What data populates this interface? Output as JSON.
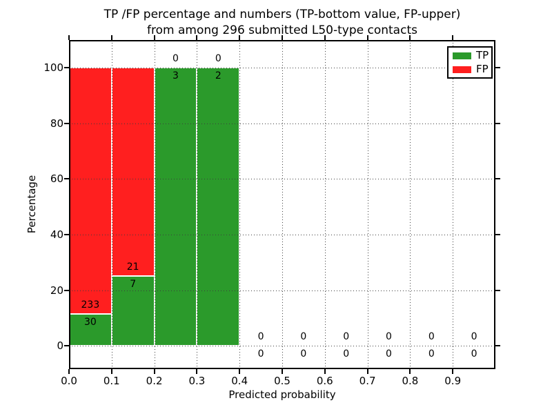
{
  "chart_data": {
    "type": "bar",
    "stacked": true,
    "title_line1": "TP /FP percentage and numbers (TP-bottom value, FP-upper)",
    "title_line2": "from among 296 submitted L50-type contacts",
    "xlabel": "Predicted probability",
    "ylabel": "Percentage",
    "xlim": [
      0.0,
      1.0
    ],
    "ylim": [
      -8.4,
      110
    ],
    "xtick_labels": [
      "0.0",
      "0.1",
      "0.2",
      "0.3",
      "0.4",
      "0.5",
      "0.6",
      "0.7",
      "0.8",
      "0.9"
    ],
    "yticks": [
      0,
      20,
      40,
      60,
      80,
      100
    ],
    "grid": "dotted",
    "legend_position": "upper right",
    "total_submitted": 296,
    "annotation_rule": "at each TP-segment top: FP count above, TP count below",
    "colors": {
      "tp": "#2b9a2b",
      "fp": "#ff1f1f"
    },
    "legend": [
      {
        "name": "TP",
        "color": "#2b9a2b"
      },
      {
        "name": "FP",
        "color": "#ff1f1f"
      }
    ],
    "bins": [
      {
        "x_start": 0.0,
        "x_end": 0.1,
        "tp_count": 30,
        "fp_count": 233,
        "tp_pct": 11.41,
        "fp_pct": 88.59
      },
      {
        "x_start": 0.1,
        "x_end": 0.2,
        "tp_count": 7,
        "fp_count": 21,
        "tp_pct": 25.0,
        "fp_pct": 75.0
      },
      {
        "x_start": 0.2,
        "x_end": 0.3,
        "tp_count": 3,
        "fp_count": 0,
        "tp_pct": 100.0,
        "fp_pct": 0.0
      },
      {
        "x_start": 0.3,
        "x_end": 0.4,
        "tp_count": 2,
        "fp_count": 0,
        "tp_pct": 100.0,
        "fp_pct": 0.0
      },
      {
        "x_start": 0.4,
        "x_end": 0.5,
        "tp_count": 0,
        "fp_count": 0,
        "tp_pct": 0.0,
        "fp_pct": 0.0
      },
      {
        "x_start": 0.5,
        "x_end": 0.6,
        "tp_count": 0,
        "fp_count": 0,
        "tp_pct": 0.0,
        "fp_pct": 0.0
      },
      {
        "x_start": 0.6,
        "x_end": 0.7,
        "tp_count": 0,
        "fp_count": 0,
        "tp_pct": 0.0,
        "fp_pct": 0.0
      },
      {
        "x_start": 0.7,
        "x_end": 0.8,
        "tp_count": 0,
        "fp_count": 0,
        "tp_pct": 0.0,
        "fp_pct": 0.0
      },
      {
        "x_start": 0.8,
        "x_end": 0.9,
        "tp_count": 0,
        "fp_count": 0,
        "tp_pct": 0.0,
        "fp_pct": 0.0
      },
      {
        "x_start": 0.9,
        "x_end": 1.0,
        "tp_count": 0,
        "fp_count": 0,
        "tp_pct": 0.0,
        "fp_pct": 0.0
      }
    ]
  }
}
